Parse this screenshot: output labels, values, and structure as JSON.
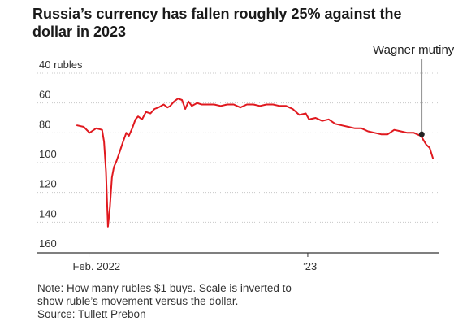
{
  "chart_data": {
    "type": "line",
    "title": "Russia’s currency has fallen roughly 25% against the dollar in 2023",
    "y_unit_label": "40 rubles",
    "y_ticks": [
      40,
      60,
      80,
      100,
      120,
      140,
      160
    ],
    "y_tick_labels": [
      "40 rubles",
      "60",
      "80",
      "100",
      "120",
      "140",
      "160"
    ],
    "ylim": [
      40,
      160
    ],
    "y_inverted": true,
    "x_tick_labels": [
      "Feb. 2022",
      "’23"
    ],
    "x_ticks": [
      "2022-02-01",
      "2023-01-01"
    ],
    "xlim": [
      "2022-01-14",
      "2023-07-11"
    ],
    "grid": true,
    "series": [
      {
        "color": "#e0191f",
        "x": [
          "2022-01-14",
          "2022-01-24",
          "2022-02-02",
          "2022-02-12",
          "2022-02-21",
          "2022-02-24",
          "2022-02-27",
          "2022-03-02",
          "2022-03-05",
          "2022-03-08",
          "2022-03-11",
          "2022-03-15",
          "2022-03-19",
          "2022-03-25",
          "2022-03-30",
          "2022-04-03",
          "2022-04-08",
          "2022-04-13",
          "2022-04-17",
          "2022-04-23",
          "2022-04-29",
          "2022-05-06",
          "2022-05-12",
          "2022-05-18",
          "2022-05-26",
          "2022-06-01",
          "2022-06-05",
          "2022-06-11",
          "2022-06-17",
          "2022-06-23",
          "2022-06-28",
          "2022-07-03",
          "2022-07-08",
          "2022-07-16",
          "2022-07-23",
          "2022-08-01",
          "2022-08-11",
          "2022-08-21",
          "2022-08-31",
          "2022-09-10",
          "2022-09-20",
          "2022-09-30",
          "2022-10-10",
          "2022-10-20",
          "2022-10-30",
          "2022-11-09",
          "2022-11-19",
          "2022-11-29",
          "2022-12-04",
          "2022-12-09",
          "2022-12-19",
          "2022-12-29",
          "2023-01-03",
          "2023-01-13",
          "2023-01-23",
          "2023-02-02",
          "2023-02-12",
          "2023-02-22",
          "2023-03-04",
          "2023-03-14",
          "2023-03-24",
          "2023-04-03",
          "2023-04-13",
          "2023-04-23",
          "2023-05-03",
          "2023-05-13",
          "2023-05-23",
          "2023-06-02",
          "2023-06-12",
          "2023-06-22",
          "2023-06-24",
          "2023-07-01",
          "2023-07-06",
          "2023-07-11"
        ],
        "values": [
          75,
          76,
          80,
          77,
          78,
          86,
          106,
          143,
          130,
          110,
          103,
          99,
          94,
          86,
          80,
          82,
          77,
          71,
          69,
          71,
          66,
          67,
          64,
          63,
          61,
          63,
          62,
          59,
          57,
          58,
          64,
          59,
          62,
          60,
          61,
          61,
          61,
          62,
          61,
          61,
          63,
          61,
          61,
          62,
          61,
          61,
          62,
          62,
          63,
          64,
          68,
          67,
          71,
          70,
          72,
          71,
          74,
          75,
          76,
          77,
          77,
          79,
          80,
          81,
          81,
          78,
          79,
          80,
          80,
          82,
          83,
          88,
          90,
          97
        ]
      }
    ],
    "annotations": [
      {
        "text": "Wagner mutiny",
        "x": "2023-06-24",
        "y": 81
      }
    ]
  },
  "note": {
    "line1": "Note: How many rubles $1 buys. Scale is inverted to",
    "line2": "show ruble’s movement versus the dollar.",
    "source": "Source: Tullett Prebon"
  }
}
